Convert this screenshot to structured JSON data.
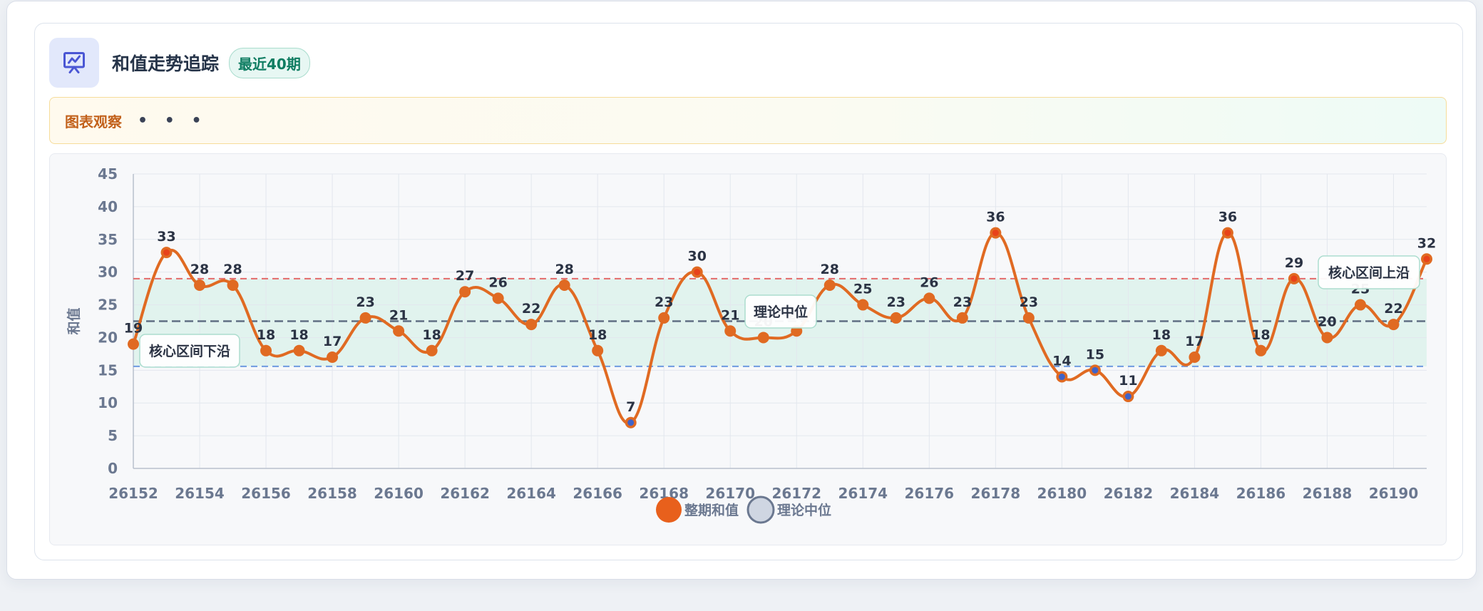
{
  "header": {
    "title": "和值走势追踪",
    "badge": "最近40期",
    "icon": "presentation-chart-icon"
  },
  "observation": {
    "label": "图表观察",
    "content": "• • •"
  },
  "legend": {
    "items": [
      {
        "label": "整期和值",
        "color": "#e8601c"
      },
      {
        "label": "理论中位",
        "color": "#cfd6e2"
      }
    ]
  },
  "colors": {
    "line": "#e06a22",
    "point_high": "#e8421a",
    "point_low": "#3f63c9",
    "band_fill": "#d9f2ea",
    "upper_line": "#e46a6a",
    "lower_line": "#6f9ae0",
    "median_line": "#4a5872"
  },
  "chart_data": {
    "type": "line",
    "x": [
      26152,
      26153,
      26154,
      26155,
      26156,
      26157,
      26158,
      26159,
      26160,
      26161,
      26162,
      26163,
      26164,
      26165,
      26166,
      26167,
      26168,
      26169,
      26170,
      26171,
      26172,
      26173,
      26174,
      26175,
      26176,
      26177,
      26178,
      26179,
      26180,
      26181,
      26182,
      26183,
      26184,
      26185,
      26186,
      26187,
      26188,
      26189,
      26190,
      26191
    ],
    "series": [
      {
        "name": "整期和值",
        "values": [
          19,
          33,
          28,
          28,
          18,
          18,
          17,
          23,
          21,
          18,
          27,
          26,
          22,
          28,
          18,
          7,
          23,
          30,
          21,
          20,
          21,
          28,
          25,
          23,
          26,
          23,
          36,
          23,
          14,
          15,
          11,
          18,
          17,
          36,
          18,
          29,
          20,
          25,
          22,
          32
        ]
      }
    ],
    "x_ticks": [
      26152,
      26154,
      26156,
      26158,
      26160,
      26162,
      26164,
      26166,
      26168,
      26170,
      26172,
      26174,
      26176,
      26178,
      26180,
      26182,
      26184,
      26186,
      26188,
      26190
    ],
    "y_ticks": [
      0,
      5,
      10,
      15,
      20,
      25,
      30,
      35,
      40,
      45
    ],
    "ylabel": "和值",
    "xlabel": "",
    "ylim": [
      0,
      45
    ],
    "grid": true,
    "reference_lines": [
      {
        "label": "理论中位",
        "value": 22.5
      },
      {
        "label": "核心区间上沿",
        "value": 29
      },
      {
        "label": "核心区间下沿",
        "value": 15.6
      }
    ],
    "legend_position": "bottom-center"
  }
}
